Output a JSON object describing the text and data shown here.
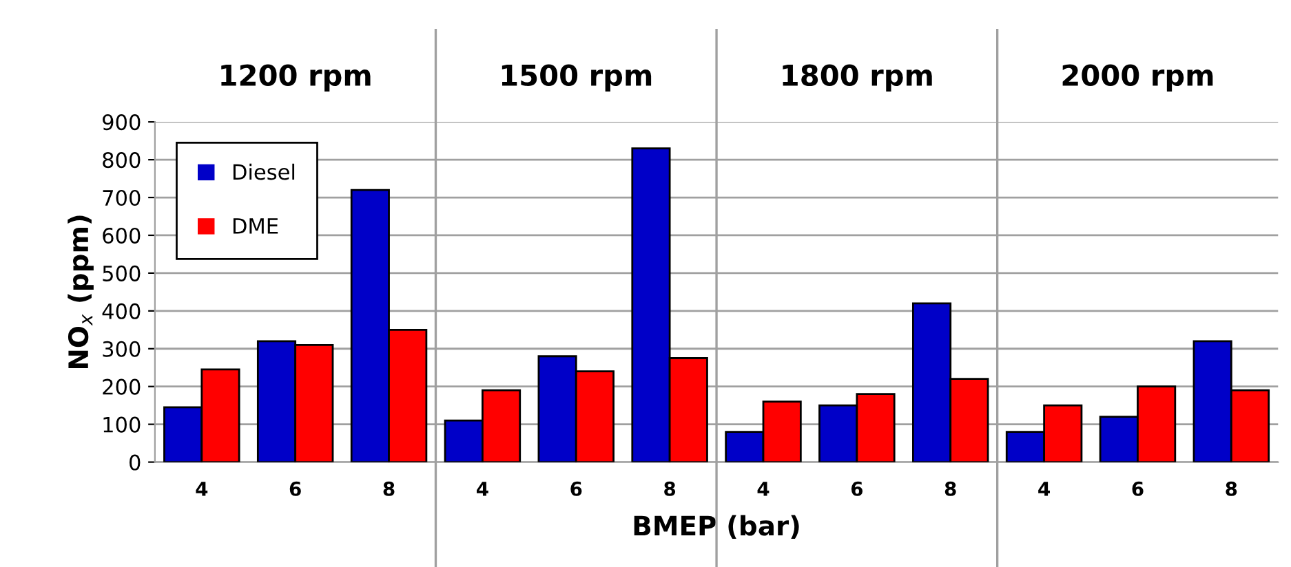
{
  "chart_data": {
    "type": "bar",
    "categories": [
      "4",
      "6",
      "8",
      "4",
      "6",
      "8",
      "4",
      "6",
      "8",
      "4",
      "6",
      "8"
    ],
    "series": [
      {
        "name": "Diesel",
        "color": "#0000c8",
        "values": [
          145,
          320,
          720,
          110,
          280,
          830,
          80,
          150,
          420,
          80,
          120,
          320
        ]
      },
      {
        "name": "DME",
        "color": "#ff0000",
        "values": [
          245,
          310,
          350,
          190,
          240,
          275,
          160,
          180,
          220,
          150,
          200,
          190
        ]
      }
    ],
    "annotations": [
      "1200 rpm",
      "1500 rpm",
      "1800 rpm",
      "2000 rpm"
    ],
    "xlabel": "BMEP (bar)",
    "ylabel": "NO$_{x}$ (ppm)",
    "ylim": [
      0,
      900
    ],
    "yticks": [
      0,
      100,
      200,
      300,
      400,
      500,
      600,
      700,
      800,
      900
    ],
    "grid": "y",
    "legend": "top left"
  }
}
